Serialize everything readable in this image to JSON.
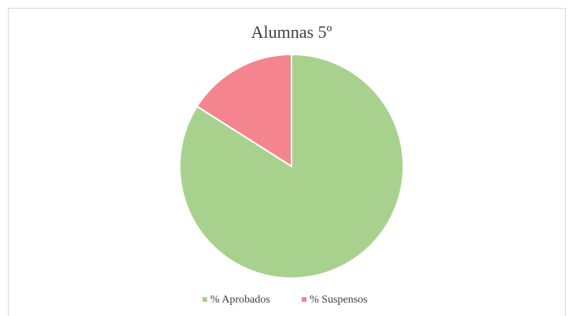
{
  "chart_data": {
    "type": "pie",
    "title": "Alumnas  5º",
    "categories": [
      "% Aprobados",
      "% Suspensos"
    ],
    "values": [
      84,
      16
    ],
    "colors": [
      "#a9d18e",
      "#f4858e"
    ],
    "legend": "bottom"
  }
}
